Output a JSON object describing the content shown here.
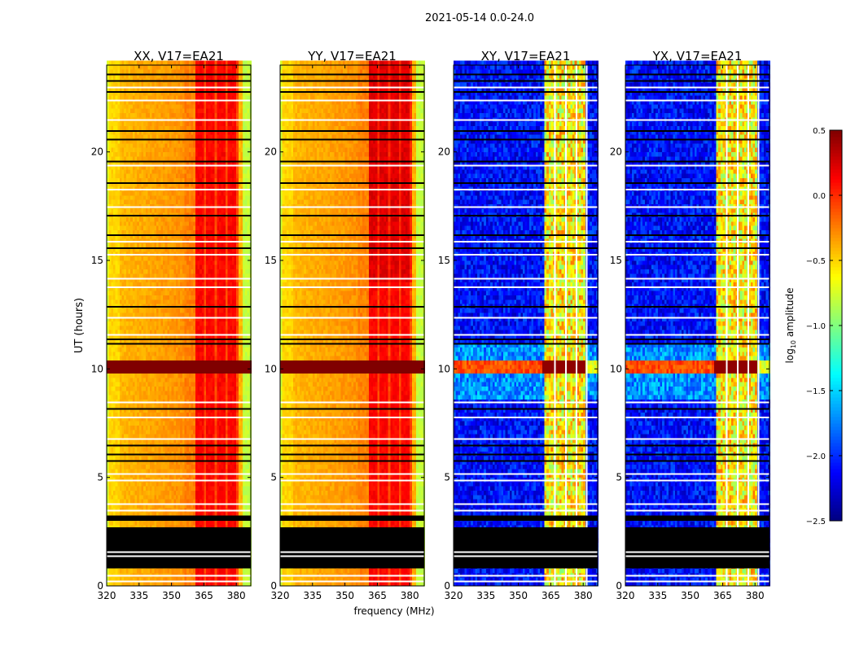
{
  "chart_data": {
    "type": "heatmap",
    "suptitle": "2021-05-14 0.0-24.0",
    "xlabel": "frequency (MHz)",
    "ylabel": "UT (hours)",
    "xlim": [
      320,
      386.7
    ],
    "ylim": [
      0,
      24
    ],
    "xticks": [
      "320",
      "335",
      "350",
      "365",
      "380"
    ],
    "xtick_values": [
      320,
      335,
      350,
      365,
      380
    ],
    "yticks": [
      "0",
      "5",
      "10",
      "15",
      "20"
    ],
    "ytick_values": [
      0,
      5,
      10,
      15,
      20
    ],
    "colorbar": {
      "label_main": "log",
      "label_sub": "10",
      "label_rest": " amplitude",
      "range": [
        -2.5,
        0.5
      ],
      "ticks": [
        "0.5",
        "0.0",
        "−0.5",
        "−1.0",
        "−1.5",
        "−2.0",
        "−2.5"
      ],
      "tick_values": [
        0.5,
        0.0,
        -0.5,
        -1.0,
        -1.5,
        -2.0,
        -2.5
      ],
      "colormap": "jet"
    },
    "panels": [
      {
        "title": "XX, V17=EA21",
        "kind": "parallel"
      },
      {
        "title": "YY, V17=EA21",
        "kind": "parallel"
      },
      {
        "title": "XY, V17=EA21",
        "kind": "cross"
      },
      {
        "title": "YX, V17=EA21",
        "kind": "cross"
      }
    ],
    "flagged_black_hours": [
      [
        0.8,
        2.7
      ],
      [
        3.0,
        3.25
      ]
    ],
    "thin_black_hours": [
      23.6,
      23.3,
      22.8,
      21.0,
      20.6,
      19.6,
      18.6,
      17.1,
      16.2,
      15.6,
      12.9,
      11.4,
      11.2,
      8.2,
      6.5,
      6.1,
      5.8
    ],
    "thin_white_hours": [
      23.0,
      22.4,
      21.5,
      19.4,
      18.3,
      17.5,
      15.9,
      15.3,
      14.2,
      13.8,
      12.4,
      11.6,
      8.5,
      7.8,
      6.8,
      5.2,
      4.9,
      3.8,
      3.5,
      1.6,
      1.4,
      0.5,
      0.25
    ],
    "bright_band_hours": [
      9.7,
      10.3
    ]
  }
}
